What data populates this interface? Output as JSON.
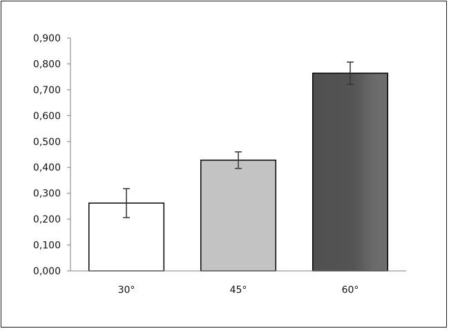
{
  "chart_data": {
    "type": "bar",
    "title": "",
    "xlabel": "",
    "ylabel": "",
    "categories": [
      "30°",
      "45°",
      "60°"
    ],
    "values": [
      0.262,
      0.428,
      0.764
    ],
    "errors": [
      0.056,
      0.032,
      0.043
    ],
    "ylim": [
      0,
      0.9
    ],
    "yticks": [
      0.0,
      0.1,
      0.2,
      0.3,
      0.4,
      0.5,
      0.6,
      0.7,
      0.8,
      0.9
    ],
    "ytick_labels": [
      "0,000",
      "0,100",
      "0,200",
      "0,300",
      "0,400",
      "0,500",
      "0,600",
      "0,700",
      "0,800",
      "0,900"
    ],
    "grid": false,
    "legend": "none",
    "bar_colors": [
      "#ffffff",
      "#c3c3c3",
      "#5a5a5a"
    ],
    "bar_edge_color": "#000000",
    "errorbar_color": "#333333"
  }
}
